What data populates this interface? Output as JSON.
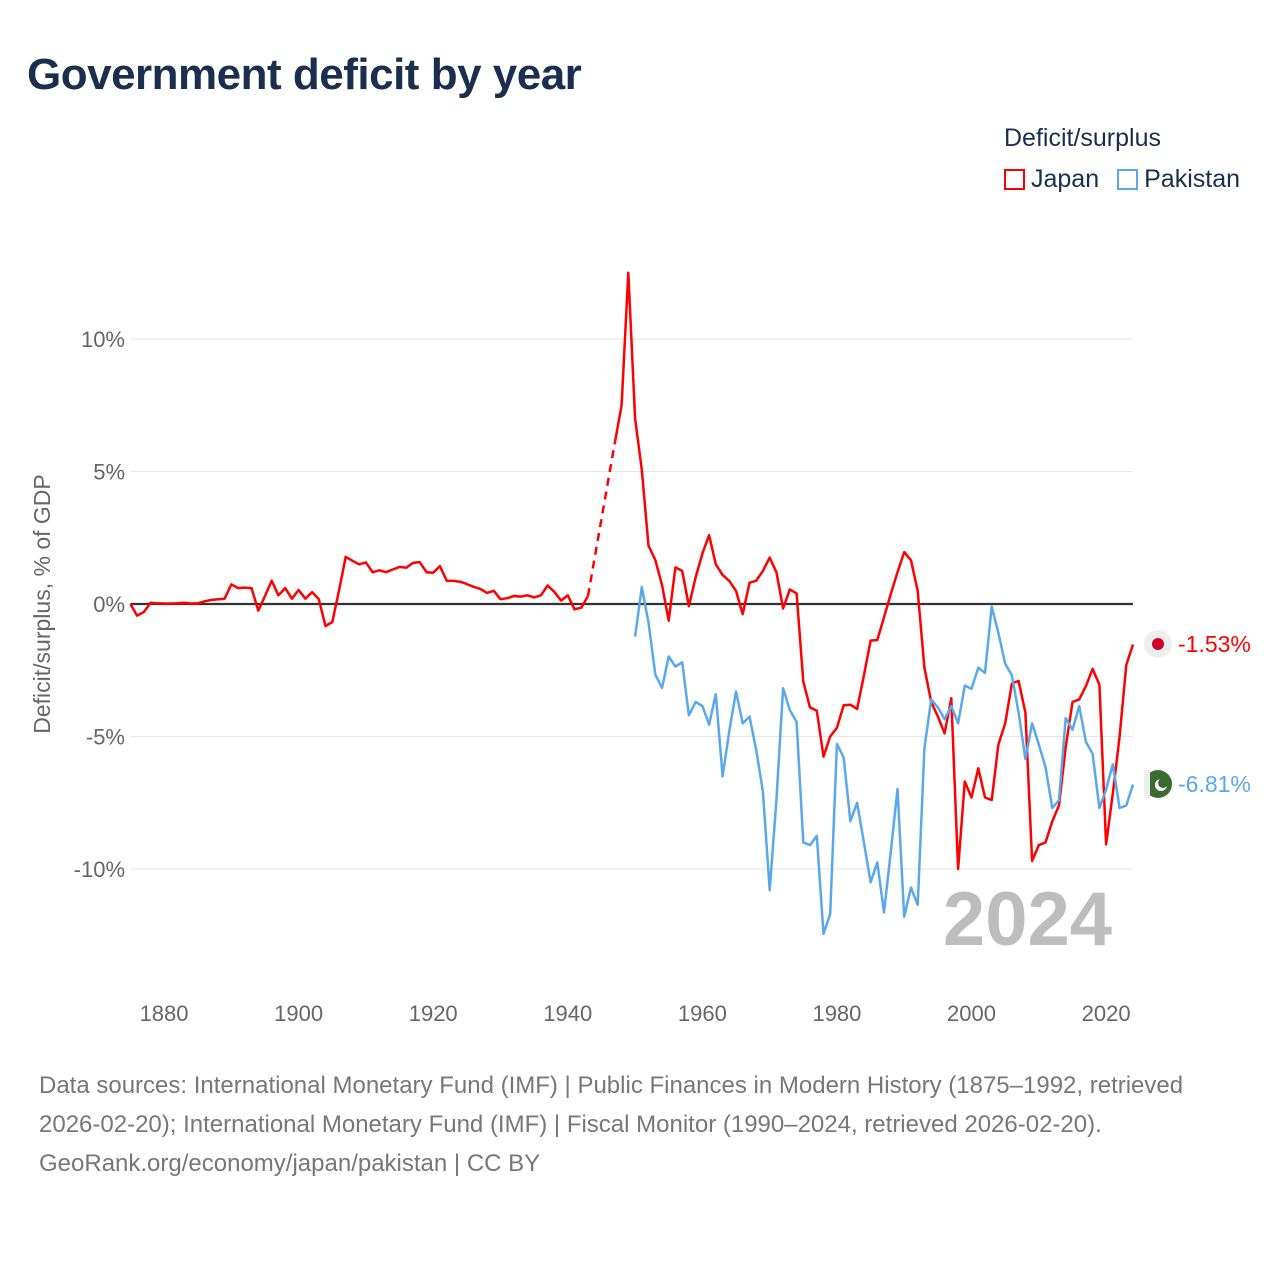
{
  "title": "Government deficit by year",
  "legend": {
    "title": "Deficit/surplus",
    "items": [
      {
        "label": "Japan",
        "color": "#ff0000"
      },
      {
        "label": "Pakistan",
        "color": "#5aa8ec"
      }
    ]
  },
  "year_overlay": "2024",
  "end_labels": {
    "japan": "-1.53%",
    "pakistan": "-6.81%"
  },
  "footer": {
    "sources": "Data sources: International Monetary Fund (IMF) | Public Finances in Modern History (1875–1992, retrieved 2026-02-20); International Monetary Fund (IMF) | Fiscal Monitor (1990–2024, retrieved 2026-02-20).",
    "credit": "GeoRank.org/economy/japan/pakistan | CC BY"
  },
  "chart_data": {
    "type": "line",
    "title": "Government deficit by year",
    "xlabel": "",
    "ylabel": "Deficit/surplus, % of GDP",
    "xlim": [
      1875,
      2024
    ],
    "ylim": [
      -13,
      13
    ],
    "x_ticks": [
      1880,
      1900,
      1920,
      1940,
      1960,
      1980,
      2000,
      2020
    ],
    "x_tick_labels": [
      "1880",
      "1900",
      "1920",
      "1940",
      "1960",
      "1980",
      "2000",
      "2020"
    ],
    "y_ticks": [
      10,
      5,
      0,
      -5,
      -10
    ],
    "y_tick_labels": [
      "10%",
      "5%",
      "0%",
      "-5%",
      "-10%"
    ],
    "grid": true,
    "legend_position": "top-right",
    "series": [
      {
        "name": "Japan",
        "color": "#ff0000",
        "start_year": 1875,
        "values": [
          0,
          -0.44,
          -0.3,
          0.05,
          0.03,
          0.02,
          0.02,
          0.03,
          0.05,
          0.02,
          0.03,
          0.1,
          0.15,
          0.18,
          0.2,
          0.74,
          0.6,
          0.62,
          0.6,
          -0.25,
          0.3,
          0.88,
          0.33,
          0.6,
          0.2,
          0.53,
          0.2,
          0.45,
          0.18,
          -0.83,
          -0.68,
          0.5,
          1.78,
          1.63,
          1.5,
          1.57,
          1.2,
          1.27,
          1.2,
          1.3,
          1.4,
          1.37,
          1.55,
          1.58,
          1.2,
          1.18,
          1.43,
          0.88,
          0.87,
          0.84,
          0.75,
          0.65,
          0.57,
          0.42,
          0.5,
          0.18,
          0.22,
          0.3,
          0.28,
          0.33,
          0.25,
          0.33,
          0.7,
          0.46,
          0.13,
          0.33,
          -0.2,
          -0.14,
          0.3,
          null,
          null,
          null,
          6.1,
          7.5,
          12.5,
          7.0,
          5.06,
          2.2,
          1.66,
          0.72,
          -0.63,
          1.38,
          1.25,
          -0.08,
          1.0,
          1.9,
          2.6,
          1.5,
          1.1,
          0.87,
          0.5,
          -0.38,
          0.8,
          0.88,
          1.25,
          1.75,
          1.2,
          -0.17,
          0.55,
          0.4,
          -2.93,
          -3.9,
          -4.03,
          -5.76,
          -5.0,
          -4.67,
          -3.82,
          -3.8,
          -3.96,
          -2.7,
          -1.38,
          -1.36,
          -0.5,
          0.38,
          1.2,
          1.96,
          1.65,
          0.5,
          -2.4,
          -3.7,
          -4.25,
          -4.88,
          -3.56,
          -10.0,
          -6.7,
          -7.3,
          -6.2,
          -7.3,
          -7.4,
          -5.3,
          -4.5,
          -3.0,
          -2.9,
          -4.1,
          -9.7,
          -9.1,
          -9.0,
          -8.2,
          -7.6,
          -5.4,
          -3.7,
          -3.6,
          -3.1,
          -2.45,
          -3.05,
          -9.07,
          -7.15,
          -5.0,
          -2.3,
          -1.53
        ]
      },
      {
        "name": "Pakistan",
        "color": "#5aa8ec",
        "start_year": 1950,
        "values": [
          -1.23,
          0.64,
          -0.7,
          -2.66,
          -3.17,
          -1.98,
          -2.36,
          -2.2,
          -4.2,
          -3.7,
          -3.85,
          -4.55,
          -3.4,
          -6.5,
          -4.8,
          -3.3,
          -4.5,
          -4.25,
          -5.5,
          -7.08,
          -10.8,
          -7.4,
          -3.18,
          -4.0,
          -4.45,
          -9.0,
          -9.1,
          -8.75,
          -12.45,
          -11.7,
          -5.28,
          -5.8,
          -8.2,
          -7.5,
          -9.0,
          -10.5,
          -9.75,
          -11.64,
          -9.35,
          -6.98,
          -11.8,
          -10.7,
          -11.35,
          -5.45,
          -3.6,
          -3.9,
          -4.35,
          -3.85,
          -4.5,
          -3.08,
          -3.2,
          -2.4,
          -2.6,
          -0.1,
          -1.1,
          -2.25,
          -2.7,
          -4.1,
          -5.85,
          -4.5,
          -5.3,
          -6.15,
          -7.7,
          -7.4,
          -4.3,
          -4.75,
          -3.85,
          -5.2,
          -5.65,
          -7.7,
          -7.0,
          -6.05,
          -7.7,
          -7.6,
          -6.81
        ]
      }
    ]
  }
}
